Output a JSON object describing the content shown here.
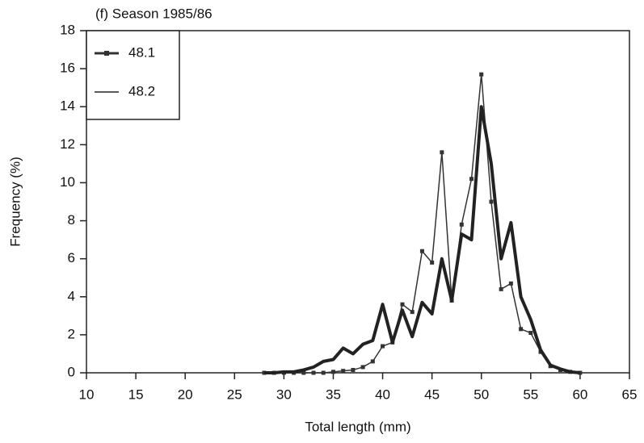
{
  "chart_data": {
    "type": "line",
    "title": "(f)  Season 1985/86",
    "x_label": "Total length (mm)",
    "y_label": "Frequency (%)",
    "x": [
      28,
      29,
      30,
      31,
      32,
      33,
      34,
      35,
      36,
      37,
      38,
      39,
      40,
      41,
      42,
      43,
      44,
      45,
      46,
      47,
      48,
      49,
      50,
      51,
      52,
      53,
      54,
      55,
      56,
      57,
      58,
      59,
      60
    ],
    "series": [
      {
        "name": "48.1",
        "color": "#333333",
        "marker": "square",
        "width": 1.5,
        "values": [
          0,
          0,
          0,
          0,
          0,
          0,
          0,
          0.05,
          0.1,
          0.15,
          0.3,
          0.6,
          1.4,
          1.6,
          3.6,
          3.2,
          6.4,
          5.8,
          11.6,
          3.8,
          7.8,
          10.2,
          15.7,
          9.0,
          4.4,
          4.7,
          2.3,
          2.1,
          1.1,
          0.35,
          0.15,
          0.05,
          0
        ]
      },
      {
        "name": "48.2",
        "color": "#222222",
        "marker": "none",
        "width": 4,
        "values": [
          0,
          0,
          0.05,
          0.05,
          0.15,
          0.3,
          0.6,
          0.7,
          1.3,
          1.0,
          1.5,
          1.7,
          3.6,
          1.6,
          3.3,
          1.9,
          3.7,
          3.1,
          6.0,
          3.8,
          7.3,
          7.0,
          14.0,
          11.0,
          6.0,
          7.9,
          4.0,
          2.8,
          1.2,
          0.4,
          0.2,
          0.05,
          0
        ]
      }
    ],
    "xlim": [
      10,
      65
    ],
    "xticks": [
      10,
      15,
      20,
      25,
      30,
      35,
      40,
      45,
      50,
      55,
      60,
      65
    ],
    "ylim": [
      0,
      18
    ],
    "yticks": [
      0,
      2,
      4,
      6,
      8,
      10,
      12,
      14,
      16,
      18
    ],
    "legend": "upper-left"
  }
}
